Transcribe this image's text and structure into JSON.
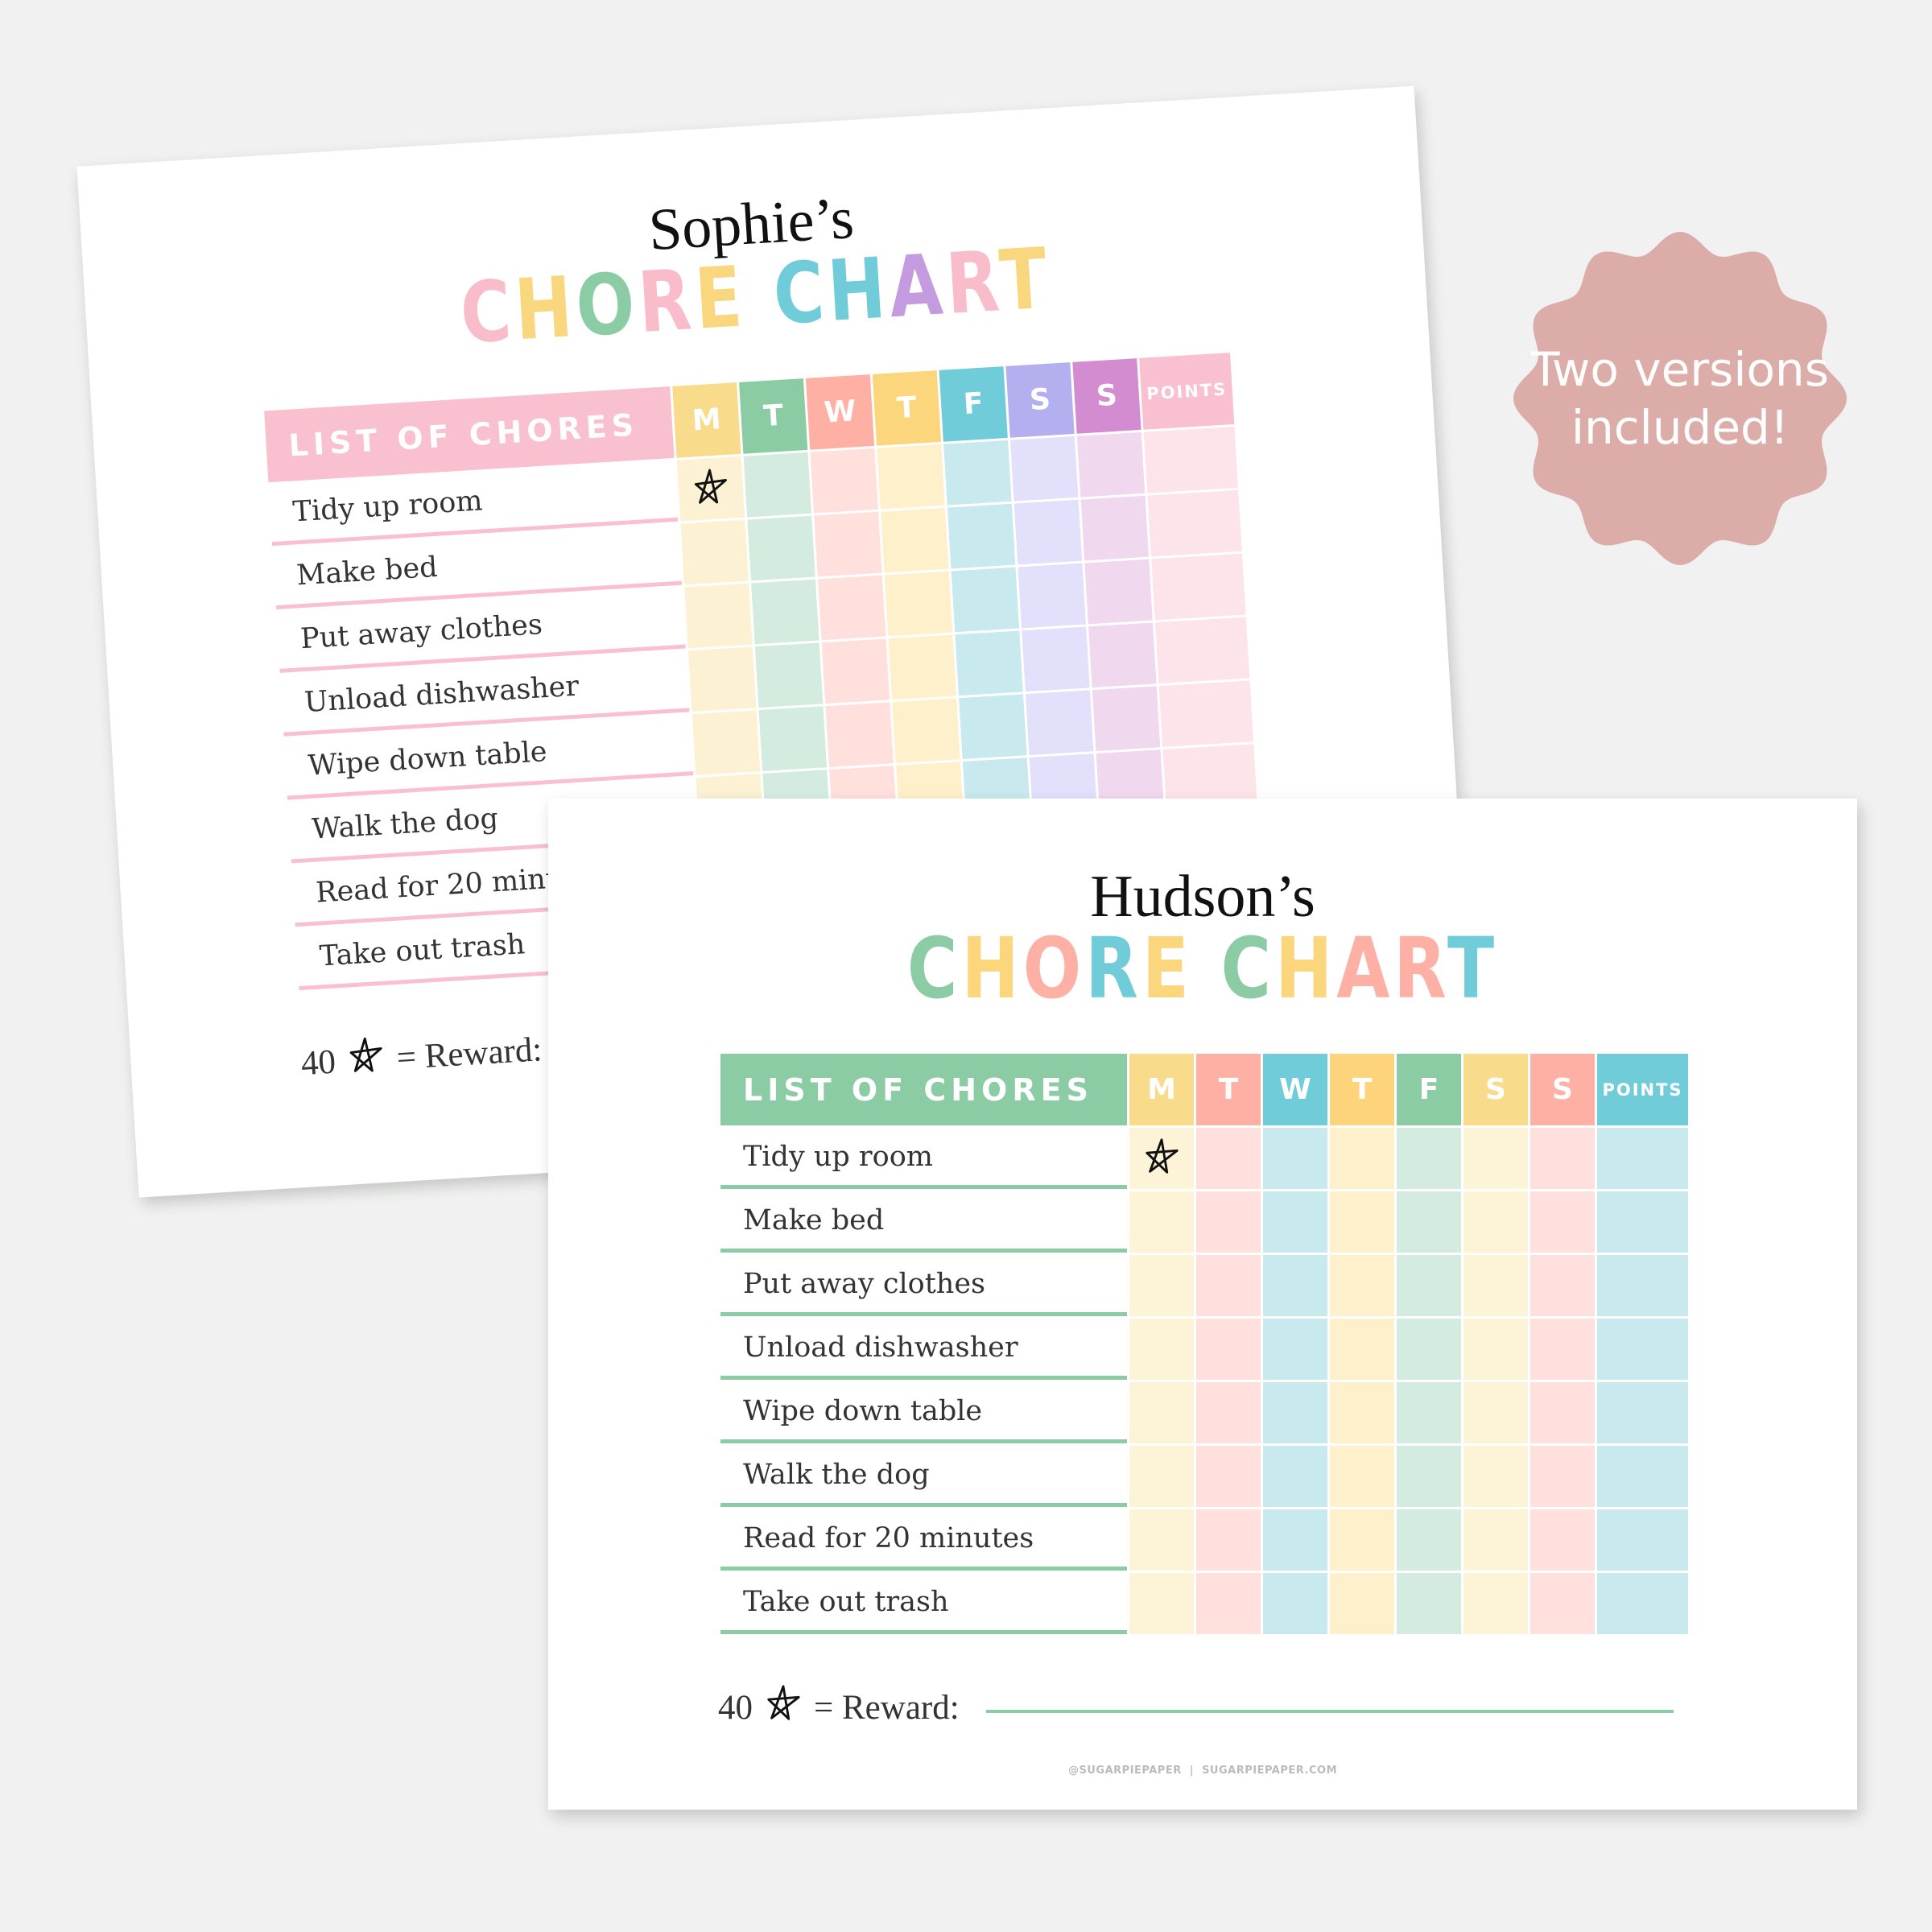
{
  "badge": {
    "text": "Two versions included!",
    "color": "#dcaca9"
  },
  "charts": [
    {
      "id": "back",
      "name": "Sophie’s",
      "title": "CHORE CHART",
      "title_colors": [
        "#f9bccb",
        "#f8d77f",
        "#8ccca4",
        "#f9bccb",
        "#f8d77f",
        "",
        "#70ccd8",
        "#70ccd8",
        "#c59be0",
        "#f9bccb",
        "#f8d77f"
      ],
      "header_label": "LIST OF CHORES",
      "accent": "#f9c0cf",
      "days": [
        "M",
        "T",
        "W",
        "T",
        "F",
        "S",
        "S"
      ],
      "points_label": "POINTS",
      "header_colors": [
        "#f8dc8c",
        "#8ccca4",
        "#ffb0a4",
        "#fbd67c",
        "#70ccd8",
        "#b4b0f0",
        "#d48cd0",
        "#f8c0d0"
      ],
      "cell_colors": [
        "#fdf1d4",
        "#d4ecdf",
        "#ffe0dc",
        "#fff0cc",
        "#c8eaee",
        "#e2e0fa",
        "#f0d8ee",
        "#fde4ea"
      ],
      "chores": [
        "Tidy up room",
        "Make bed",
        "Put away clothes",
        "Unload dishwasher",
        "Wipe down table",
        "Walk the dog",
        "Read for 20 minutes",
        "Take out trash"
      ],
      "stars": [
        [
          0,
          0
        ]
      ],
      "reward": {
        "count": "40",
        "label": "= Reward:"
      }
    },
    {
      "id": "front",
      "name": "Hudson’s",
      "title": "CHORE CHART",
      "title_colors": [
        "#8ccca4",
        "#fbd67c",
        "#ffb0a4",
        "#70ccd8",
        "#fbd67c",
        "",
        "#8ccca4",
        "#fbd67c",
        "#ffb0a4",
        "#ffb0a4",
        "#70ccd8"
      ],
      "header_label": "LIST OF CHORES",
      "accent": "#8ccca4",
      "days": [
        "M",
        "T",
        "W",
        "T",
        "F",
        "S",
        "S"
      ],
      "points_label": "POINTS",
      "header_colors": [
        "#f8dc8c",
        "#ffb0a4",
        "#70ccd8",
        "#fdd47c",
        "#8ccca4",
        "#f8dc8c",
        "#ffb0a4",
        "#70ccd8"
      ],
      "cell_colors": [
        "#fdf3d6",
        "#ffe0dc",
        "#c8eaee",
        "#fff0cc",
        "#d4ecdf",
        "#fdf3d6",
        "#ffe0dc",
        "#c8eaee"
      ],
      "chores": [
        "Tidy up room",
        "Make bed",
        "Put away clothes",
        "Unload dishwasher",
        "Wipe down table",
        "Walk the dog",
        "Read for 20 minutes",
        "Take out trash"
      ],
      "stars": [
        [
          0,
          0
        ]
      ],
      "reward": {
        "count": "40",
        "label": "= Reward:"
      },
      "footer": "@SUGARPIEPAPER  |  SUGARPIEPAPER.COM"
    }
  ]
}
